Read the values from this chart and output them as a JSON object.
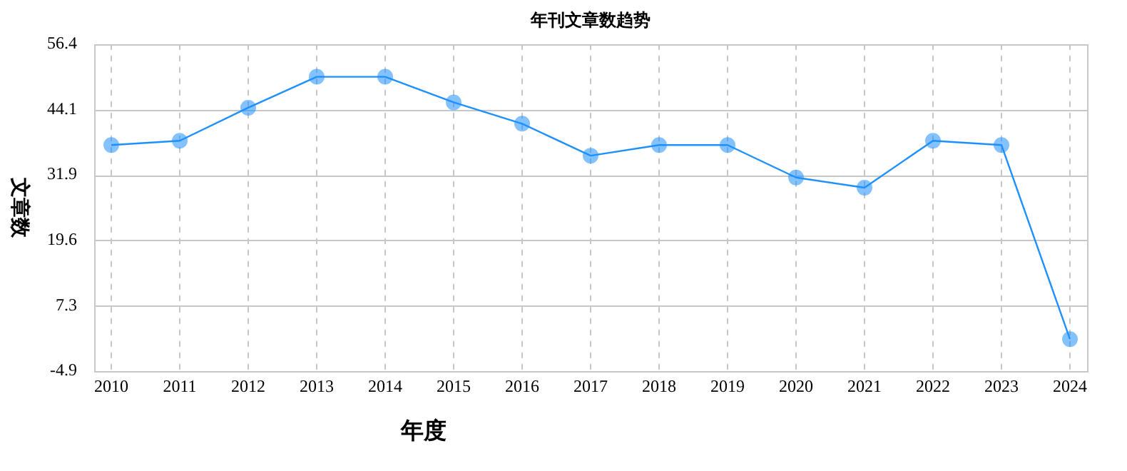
{
  "chart_data": {
    "type": "line",
    "title": "年刊文章数趋势",
    "xlabel": "年度",
    "ylabel": "文章数",
    "categories": [
      "2010",
      "2011",
      "2012",
      "2013",
      "2014",
      "2015",
      "2016",
      "2017",
      "2018",
      "2019",
      "2020",
      "2021",
      "2022",
      "2023",
      "2024"
    ],
    "series": [
      {
        "color": "#1e90ff",
        "values": [
          37.5,
          38.3,
          44.5,
          50.3,
          50.3,
          45.5,
          41.5,
          35.5,
          37.5,
          37.5,
          31.4,
          29.5,
          38.3,
          37.5,
          1.1
        ]
      }
    ],
    "ylim": [
      -4.9,
      56.4
    ],
    "yticks": [
      -4.9,
      7.3,
      19.6,
      31.9,
      44.1,
      56.4
    ],
    "grid": true,
    "marker": "circle",
    "line_style": "solid"
  }
}
